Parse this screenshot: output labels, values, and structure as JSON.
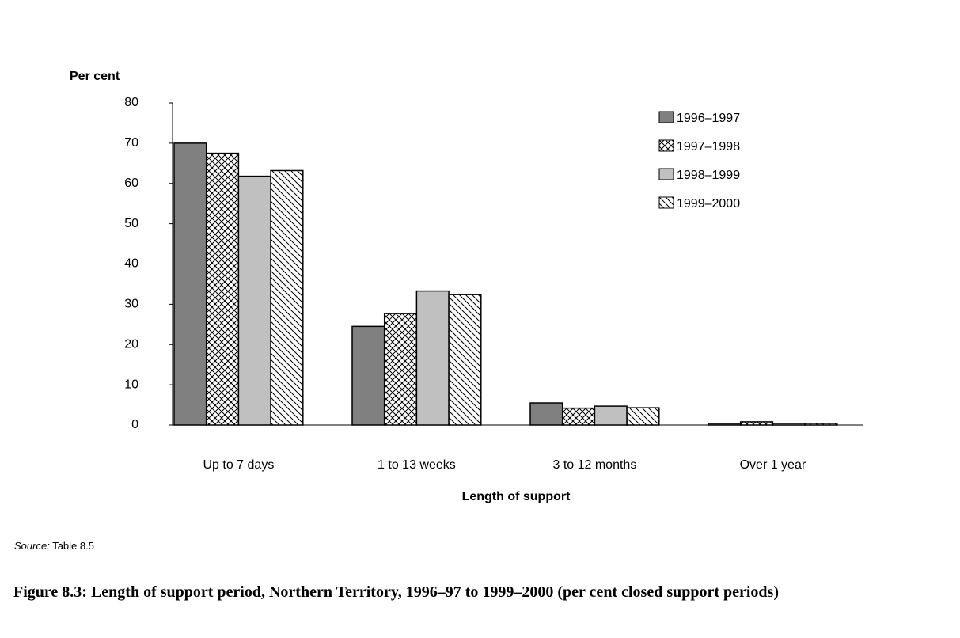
{
  "chart_data": {
    "type": "bar",
    "ylabel": "Per cent",
    "xlabel": "Length of support",
    "categories": [
      "Up to 7 days",
      "1 to 13 weeks",
      "3 to 12 months",
      "Over 1 year"
    ],
    "series": [
      {
        "name": "1996–1997",
        "color": "#808080",
        "hatch": "none",
        "values": [
          70,
          24.5,
          5.5,
          0.4
        ]
      },
      {
        "name": "1997–1998",
        "color": "#ffffff",
        "hatch": "cross",
        "values": [
          67.5,
          27.7,
          4.2,
          0.8
        ]
      },
      {
        "name": "1998–1999",
        "color": "#c0c0c0",
        "hatch": "none",
        "values": [
          61.8,
          33.3,
          4.7,
          0.4
        ]
      },
      {
        "name": "1999–2000",
        "color": "#ffffff",
        "hatch": "diagonal",
        "values": [
          63.2,
          32.4,
          4.3,
          0.4
        ]
      }
    ],
    "ylim": [
      0,
      80
    ],
    "yticks": [
      0,
      10,
      20,
      30,
      40,
      50,
      60,
      70,
      80
    ],
    "grid": false,
    "legend": "upper right",
    "source": {
      "label": "Source:",
      "text": "Table 8.5"
    },
    "caption": "Figure 8.3: Length of support period, Northern Territory, 1996–97 to 1999–2000 (per cent closed support periods)"
  }
}
